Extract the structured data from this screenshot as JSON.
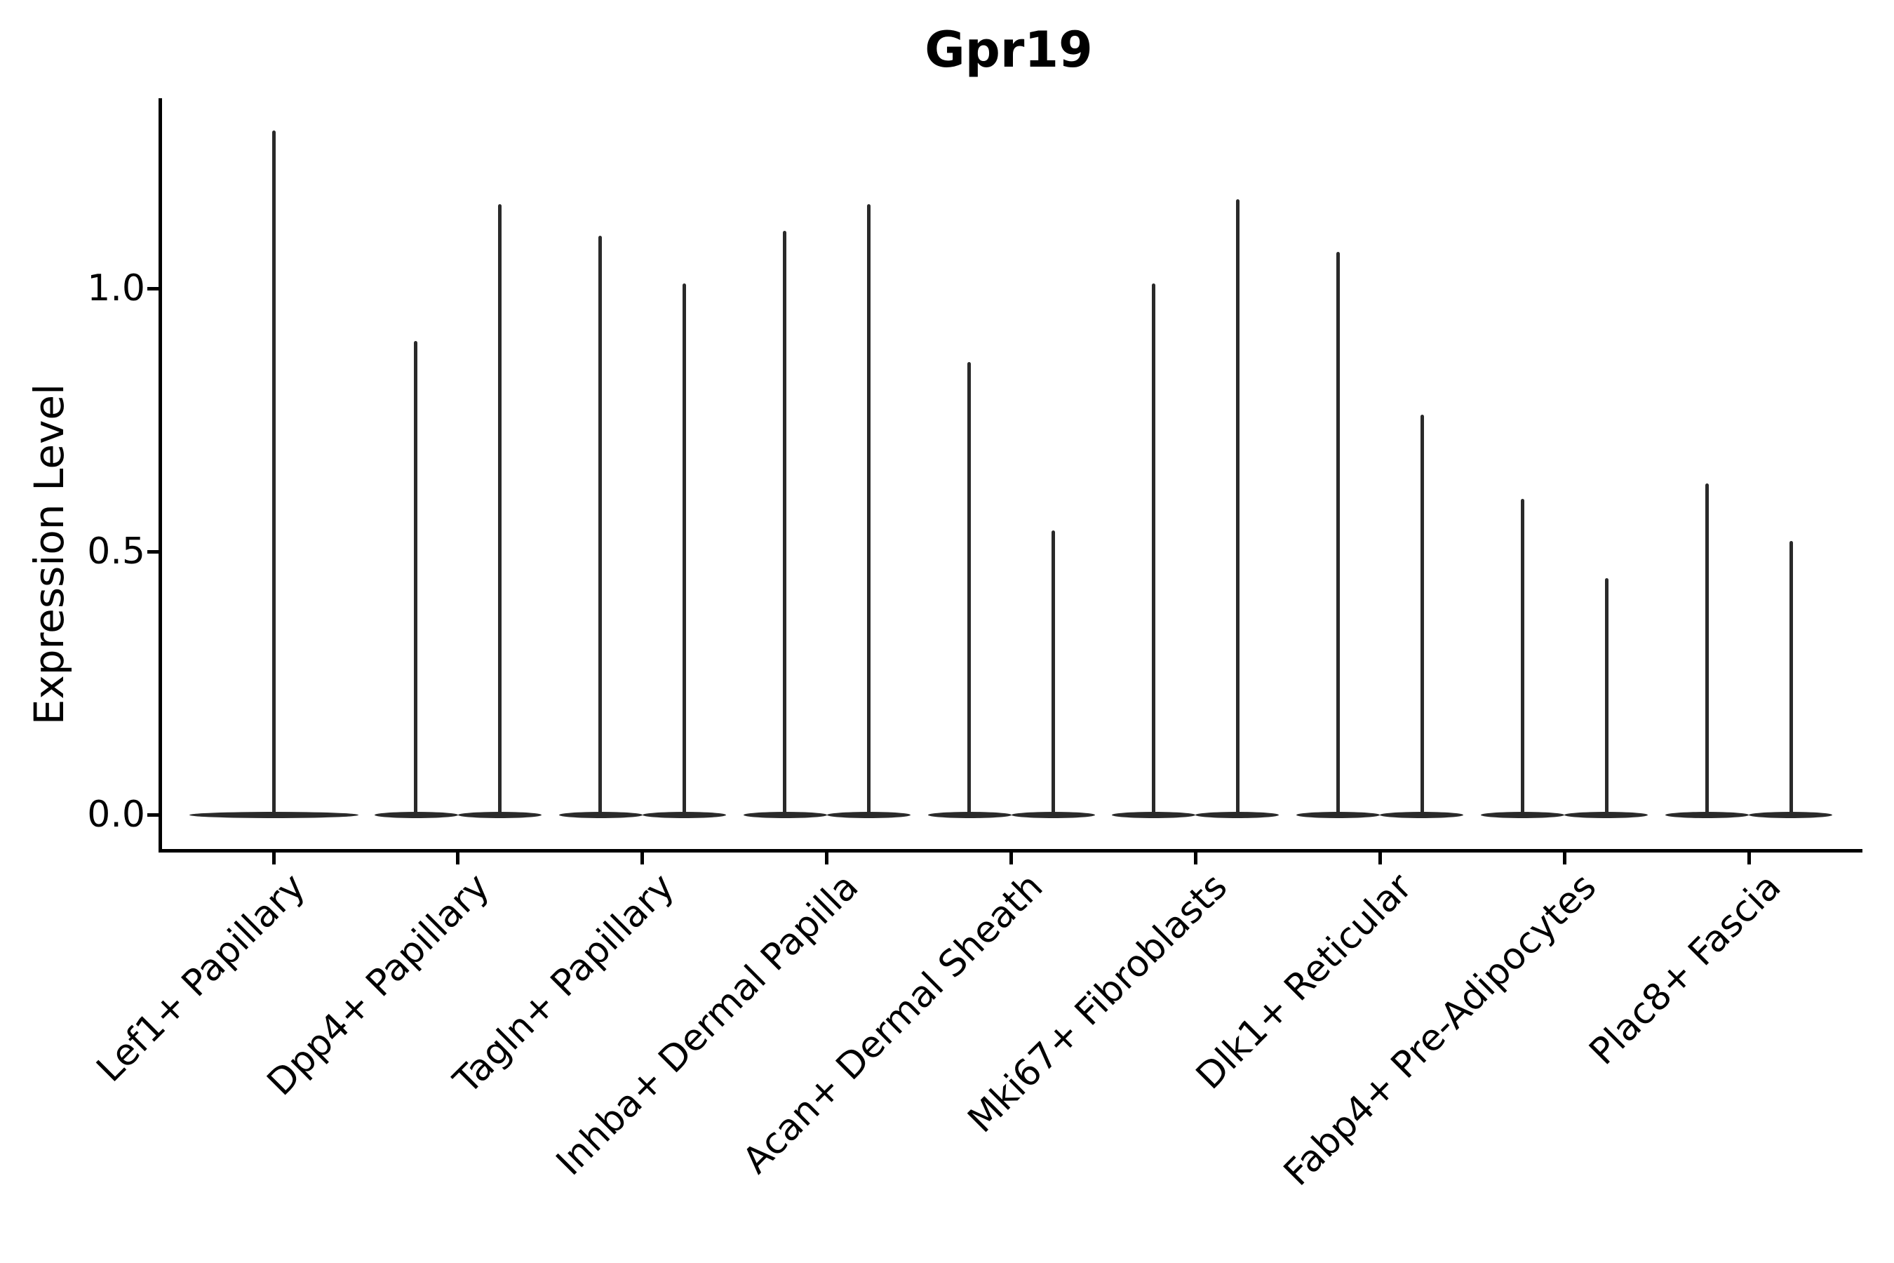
{
  "chart_data": {
    "type": "violin",
    "title": "Gpr19",
    "xlabel": "",
    "ylabel": "Expression Level",
    "categories": [
      "Lef1+ Papillary",
      "Dpp4+ Papillary",
      "Tagln+ Papillary",
      "Inhba+ Dermal Papilla",
      "Acan+ Dermal Sheath",
      "Mki67+ Fibroblasts",
      "Dlk1+ Reticular",
      "Fabp4+ Pre-Adipocytes",
      "Plac8+ Fascia"
    ],
    "violins_per_category": [
      1,
      2,
      2,
      2,
      2,
      2,
      2,
      2,
      2
    ],
    "series": [
      [
        1.3
      ],
      [
        0.9,
        1.16
      ],
      [
        1.1,
        1.01
      ],
      [
        1.11,
        1.16
      ],
      [
        0.86,
        0.54
      ],
      [
        1.01,
        1.17
      ],
      [
        1.07,
        0.76
      ],
      [
        0.6,
        0.45
      ],
      [
        0.63,
        0.52
      ]
    ],
    "baseline_value": 0.0,
    "shape_note": "each violin is a flat dense mass at expression 0 with a single thin spike rising to its maximum value",
    "ytick_labels": [
      "0.0",
      "0.5",
      "1.0"
    ],
    "ytick_values": [
      0.0,
      0.5,
      1.0
    ],
    "ylim": [
      -0.07,
      1.36
    ],
    "grid": false,
    "legend": null,
    "colors": {
      "violin": "#2a2a2a",
      "axis": "#000000",
      "background": "#ffffff"
    }
  }
}
